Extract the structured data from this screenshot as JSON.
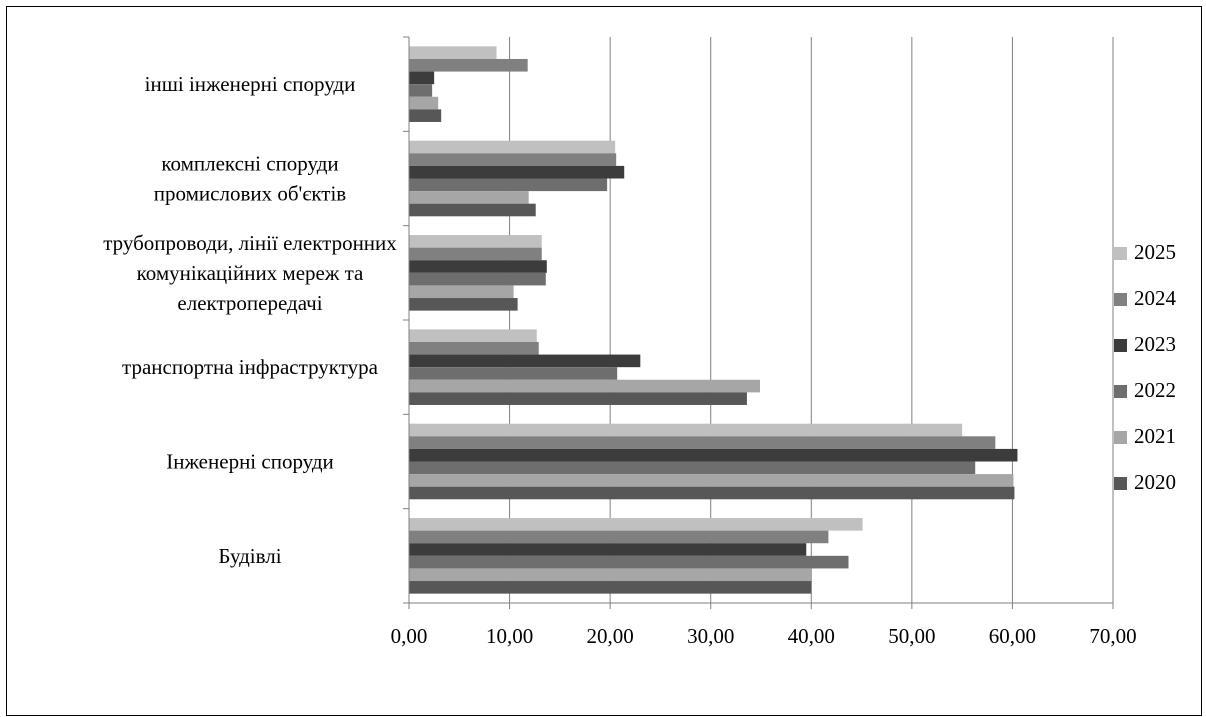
{
  "chart_data": {
    "type": "bar",
    "orientation": "horizontal",
    "categories": [
      [
        "інші інженерні споруди"
      ],
      [
        "комплексні споруди",
        "промислових об'єктів"
      ],
      [
        "трубопроводи, лінії електронних",
        "комунікаційних мереж та",
        "електропередачі"
      ],
      [
        "транспортна інфраструктура"
      ],
      [
        "Інженерні споруди"
      ],
      [
        "Будівлі"
      ]
    ],
    "series": [
      {
        "name": "2025",
        "color": "#c0c0c0",
        "values": [
          8.7,
          20.5,
          13.2,
          12.7,
          55.0,
          45.1
        ]
      },
      {
        "name": "2024",
        "color": "#808080",
        "values": [
          11.8,
          20.6,
          13.2,
          12.9,
          58.3,
          41.7
        ]
      },
      {
        "name": "2023",
        "color": "#3c3c3c",
        "values": [
          2.5,
          21.4,
          13.7,
          23.0,
          60.5,
          39.5
        ]
      },
      {
        "name": "2022",
        "color": "#6e6e6e",
        "values": [
          2.3,
          19.7,
          13.6,
          20.7,
          56.3,
          43.7
        ]
      },
      {
        "name": "2021",
        "color": "#a6a6a6",
        "values": [
          2.9,
          11.9,
          10.4,
          34.9,
          60.1,
          40.0
        ]
      },
      {
        "name": "2020",
        "color": "#575757",
        "values": [
          3.2,
          12.6,
          10.8,
          33.6,
          60.2,
          40.0
        ]
      }
    ],
    "xlim": [
      0,
      70
    ],
    "xticks": [
      "0,00",
      "10,00",
      "20,00",
      "30,00",
      "40,00",
      "50,00",
      "60,00",
      "70,00"
    ],
    "grid": "vertical major gridlines",
    "legend": "right",
    "legend_order": [
      "2025",
      "2024",
      "2023",
      "2022",
      "2021",
      "2020"
    ]
  }
}
